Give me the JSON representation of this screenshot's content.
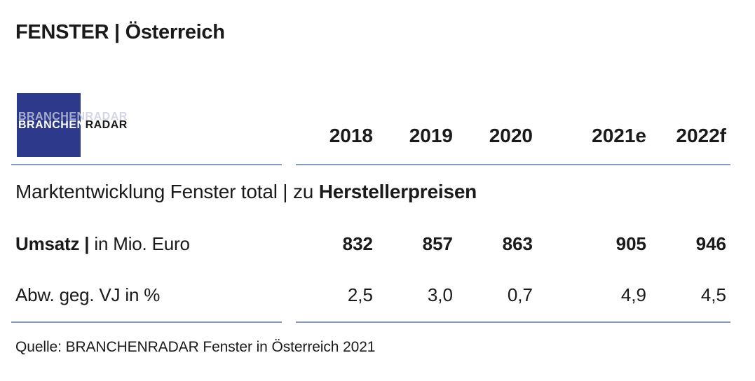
{
  "title": "FENSTER | Österreich",
  "logo": {
    "part1": "BRANCHEN",
    "part2": "RADAR",
    "echo": "BRANCHENRADAR"
  },
  "years": [
    "2018",
    "2019",
    "2020",
    "2021e",
    "2022f"
  ],
  "section": {
    "prefix": "Marktentwicklung Fenster total | zu ",
    "bold": "Herstellerpreisen"
  },
  "rows": [
    {
      "label_bold": "Umsatz |",
      "label_rest": " in Mio. Euro",
      "values": [
        "832",
        "857",
        "863",
        "905",
        "946"
      ]
    },
    {
      "label_bold": "",
      "label_rest": "Abw. geg. VJ in %",
      "values": [
        "2,5",
        "3,0",
        "0,7",
        "4,9",
        "4,5"
      ]
    }
  ],
  "source": "Quelle: BRANCHENRADAR Fenster in Österreich 2021",
  "colors": {
    "logo_bg": "#2d3a8c",
    "rule": "#7f9bc0"
  }
}
